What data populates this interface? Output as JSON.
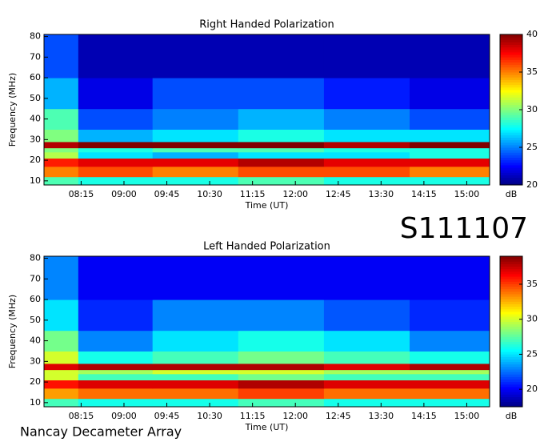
{
  "title": "S111107",
  "footer": "Nancay Decameter Array",
  "chart_data": [
    {
      "type": "heatmap",
      "title": "Right Handed Polarization",
      "xlabel": "Time (UT)",
      "ylabel": "Frequency (MHz)",
      "colorbar_label": "dB",
      "colormap": "jet",
      "xlim": [
        7.6,
        15.4
      ],
      "ylim": [
        8,
        81
      ],
      "xticks": [
        {
          "value": 8.25,
          "label": "08:15"
        },
        {
          "value": 9,
          "label": "09:00"
        },
        {
          "value": 9.75,
          "label": "09:45"
        },
        {
          "value": 10.5,
          "label": "10:30"
        },
        {
          "value": 11.25,
          "label": "11:15"
        },
        {
          "value": 12,
          "label": "12:00"
        },
        {
          "value": 12.75,
          "label": "12:45"
        },
        {
          "value": 13.5,
          "label": "13:30"
        },
        {
          "value": 14.25,
          "label": "14:15"
        },
        {
          "value": 15,
          "label": "15:00"
        }
      ],
      "yticks": [
        10,
        20,
        30,
        40,
        50,
        60,
        70,
        80
      ],
      "clim": [
        20,
        40
      ],
      "cticks": [
        20,
        25,
        30,
        35,
        40
      ],
      "x_bins": [
        7.6,
        8.2,
        9.5,
        11,
        12.5,
        14,
        15.4
      ],
      "y_bins": [
        8,
        12,
        17,
        21,
        24,
        26,
        29,
        35,
        45,
        60,
        81
      ],
      "values": [
        [
          29,
          28,
          28,
          29,
          28,
          28
        ],
        [
          35,
          36,
          35,
          36,
          36,
          35
        ],
        [
          37,
          38,
          38,
          39,
          38,
          38
        ],
        [
          31,
          27,
          26,
          27,
          27,
          28
        ],
        [
          30,
          28,
          29,
          29,
          28,
          28
        ],
        [
          39,
          40,
          40,
          40,
          39,
          40
        ],
        [
          30,
          26,
          27,
          28,
          27,
          27
        ],
        [
          29,
          24,
          25,
          26,
          25,
          24
        ],
        [
          26,
          22,
          24,
          24,
          23,
          22
        ],
        [
          24,
          21,
          21,
          21,
          21,
          21
        ]
      ]
    },
    {
      "type": "heatmap",
      "title": "Left Handed Polarization",
      "xlabel": "Time (UT)",
      "ylabel": "Frequency (MHz)",
      "colorbar_label": "dB",
      "colormap": "jet",
      "xlim": [
        7.6,
        15.4
      ],
      "ylim": [
        8,
        81
      ],
      "xticks": [
        {
          "value": 8.25,
          "label": "08:15"
        },
        {
          "value": 9,
          "label": "09:00"
        },
        {
          "value": 9.75,
          "label": "09:45"
        },
        {
          "value": 10.5,
          "label": "10:30"
        },
        {
          "value": 11.25,
          "label": "11:15"
        },
        {
          "value": 12,
          "label": "12:00"
        },
        {
          "value": 12.75,
          "label": "12:45"
        },
        {
          "value": 13.5,
          "label": "13:30"
        },
        {
          "value": 14.25,
          "label": "14:15"
        },
        {
          "value": 15,
          "label": "15:00"
        }
      ],
      "yticks": [
        10,
        20,
        30,
        40,
        50,
        60,
        70,
        80
      ],
      "clim": [
        17.5,
        39
      ],
      "cticks": [
        20,
        25,
        30,
        35
      ],
      "x_bins": [
        7.6,
        8.2,
        9.5,
        11,
        12.5,
        14,
        15.4
      ],
      "y_bins": [
        8,
        12,
        17,
        21,
        24,
        26,
        29,
        35,
        45,
        60,
        81
      ],
      "values": [
        [
          27,
          26,
          26,
          27,
          26,
          26
        ],
        [
          33,
          34,
          34,
          35,
          34,
          34
        ],
        [
          36,
          37,
          37,
          38,
          37,
          37
        ],
        [
          30,
          27,
          27,
          28,
          27,
          27
        ],
        [
          30,
          29,
          30,
          30,
          29,
          29
        ],
        [
          37,
          38,
          38,
          38,
          37,
          38
        ],
        [
          30,
          26,
          27,
          28,
          27,
          26
        ],
        [
          28,
          23,
          25,
          26,
          25,
          23
        ],
        [
          25,
          21,
          23,
          23,
          22,
          21
        ],
        [
          23,
          20,
          20,
          20,
          20,
          20
        ]
      ]
    }
  ]
}
